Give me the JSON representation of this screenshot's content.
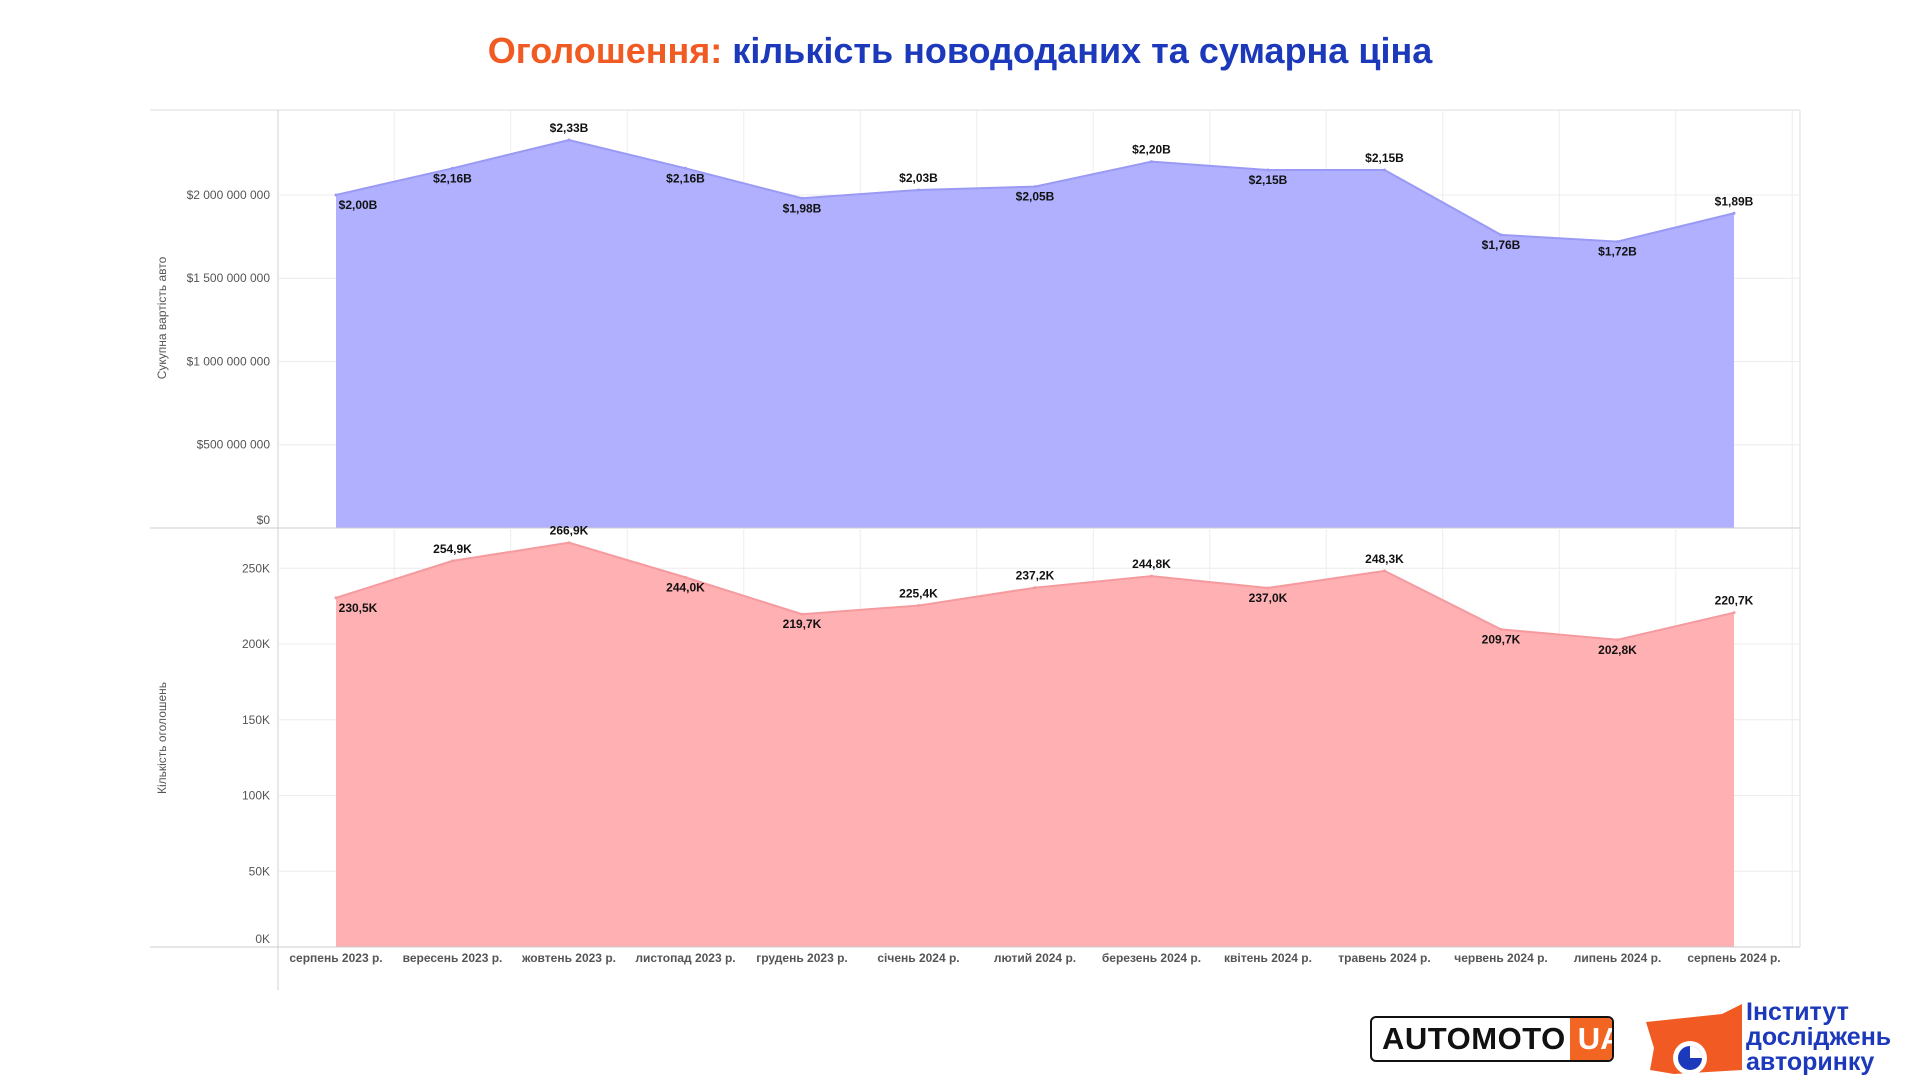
{
  "title": {
    "part1": "Оголошення:",
    "part2": "кількість новододаних та сумарна ціна"
  },
  "colors": {
    "top_fill": "#b0b0ff",
    "top_line": "#9a9af5",
    "bottom_fill": "#ffb0b3",
    "bottom_line": "#f59a9e",
    "title_orange": "#f15a22",
    "title_blue": "#1c39bb"
  },
  "chart_data": [
    {
      "type": "area",
      "ylabel": "Сукупна вартість авто",
      "ylim": [
        0,
        2450000000
      ],
      "yticks": [
        0,
        500000000,
        1000000000,
        1500000000,
        2000000000
      ],
      "ytick_labels": [
        "$0",
        "$500 000 000",
        "$1 000 000 000",
        "$1 500 000 000",
        "$2 000 000 000"
      ],
      "grid": true,
      "categories": [
        "серпень 2023 р.",
        "вересень 2023 р.",
        "жовтень 2023 р.",
        "листопад 2023 р.",
        "грудень 2023 р.",
        "січень 2024 р.",
        "лютий 2024 р.",
        "березень 2024 р.",
        "квітень 2024 р.",
        "травень 2024 р.",
        "червень 2024 р.",
        "липень 2024 р.",
        "серпень 2024 р."
      ],
      "values": [
        2000000000,
        2160000000,
        2330000000,
        2160000000,
        1980000000,
        2030000000,
        2050000000,
        2200000000,
        2150000000,
        2150000000,
        1760000000,
        1720000000,
        1890000000
      ],
      "data_labels": [
        "$2,00B",
        "$2,16B",
        "$2,33B",
        "$2,16B",
        "$1,98B",
        "$2,03B",
        "$2,05B",
        "$2,20B",
        "$2,15B",
        "$2,15B",
        "$1,76B",
        "$1,72B",
        "$1,89B"
      ]
    },
    {
      "type": "area",
      "ylabel": "Кількість оголошень",
      "ylim": [
        0,
        270000
      ],
      "yticks": [
        0,
        50000,
        100000,
        150000,
        200000,
        250000
      ],
      "ytick_labels": [
        "0K",
        "50K",
        "100K",
        "150K",
        "200K",
        "250K"
      ],
      "grid": true,
      "categories": [
        "серпень 2023 р.",
        "вересень 2023 р.",
        "жовтень 2023 р.",
        "листопад 2023 р.",
        "грудень 2023 р.",
        "січень 2024 р.",
        "лютий 2024 р.",
        "березень 2024 р.",
        "квітень 2024 р.",
        "травень 2024 р.",
        "червень 2024 р.",
        "липень 2024 р.",
        "серпень 2024 р."
      ],
      "values": [
        230500,
        254900,
        266900,
        244000,
        219700,
        225400,
        237200,
        244800,
        237000,
        248300,
        209700,
        202800,
        220700
      ],
      "data_labels": [
        "230,5K",
        "254,9K",
        "266,9K",
        "244,0K",
        "219,7K",
        "225,4K",
        "237,2K",
        "244,8K",
        "237,0K",
        "248,3K",
        "209,7K",
        "202,8K",
        "220,7K"
      ]
    }
  ],
  "logos": {
    "automoto_text": "AUTOMOTO",
    "automoto_suffix": "UA",
    "institute_line1": "Інститут",
    "institute_line2": "досліджень",
    "institute_line3": "авторинку"
  }
}
